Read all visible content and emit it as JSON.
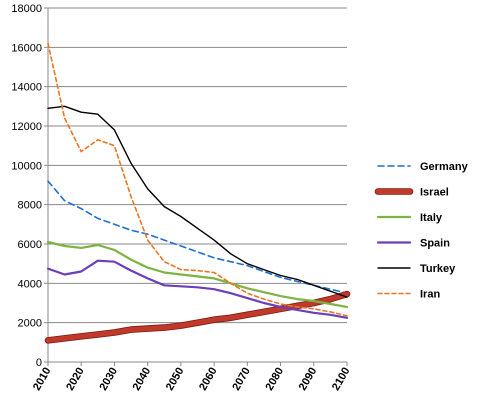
{
  "chart_data": {
    "type": "line",
    "title": "",
    "xlabel": "",
    "ylabel": "",
    "x": [
      2010,
      2015,
      2020,
      2025,
      2030,
      2035,
      2040,
      2045,
      2050,
      2055,
      2060,
      2065,
      2070,
      2075,
      2080,
      2085,
      2090,
      2095,
      2100
    ],
    "x_ticks": [
      "2010",
      "2020",
      "2030",
      "2040",
      "2050",
      "2060",
      "2070",
      "2080",
      "2090",
      "2100"
    ],
    "y_ticks": [
      "0",
      "2000",
      "4000",
      "6000",
      "8000",
      "10000",
      "12000",
      "14000",
      "16000",
      "18000"
    ],
    "xlim": [
      2010,
      2100
    ],
    "ylim": [
      0,
      18000
    ],
    "grid": "horizontal",
    "legend_position": "right",
    "series": [
      {
        "name": "Germany",
        "color": "#1f6fd1",
        "style": "dashed",
        "values": [
          9200,
          8200,
          7800,
          7300,
          7000,
          6700,
          6500,
          6200,
          5900,
          5600,
          5300,
          5100,
          4900,
          4600,
          4300,
          4100,
          3900,
          3700,
          3500
        ]
      },
      {
        "name": "Israel",
        "color": "#c0392b",
        "style": "thick",
        "values": [
          1100,
          1200,
          1300,
          1400,
          1500,
          1650,
          1700,
          1750,
          1850,
          2000,
          2150,
          2250,
          2400,
          2550,
          2700,
          2850,
          3000,
          3200,
          3450
        ]
      },
      {
        "name": "Italy",
        "color": "#7cb342",
        "style": "solid",
        "values": [
          6100,
          5900,
          5800,
          5950,
          5700,
          5200,
          4800,
          4550,
          4450,
          4350,
          4250,
          4000,
          3750,
          3550,
          3350,
          3200,
          3100,
          2950,
          2800
        ]
      },
      {
        "name": "Spain",
        "color": "#6a3fb8",
        "style": "solid",
        "values": [
          4750,
          4450,
          4600,
          5150,
          5100,
          4650,
          4250,
          3900,
          3850,
          3800,
          3700,
          3500,
          3250,
          3000,
          2800,
          2650,
          2500,
          2400,
          2250
        ]
      },
      {
        "name": "Turkey",
        "color": "#000000",
        "style": "solid",
        "values": [
          12900,
          13000,
          12700,
          12600,
          11800,
          10100,
          8800,
          7900,
          7400,
          6800,
          6200,
          5500,
          5000,
          4700,
          4400,
          4200,
          3900,
          3600,
          3300
        ]
      },
      {
        "name": "Iran",
        "color": "#e87722",
        "style": "dashed",
        "values": [
          16200,
          12400,
          10700,
          11300,
          11000,
          8400,
          6200,
          5100,
          4700,
          4650,
          4550,
          4000,
          3500,
          3200,
          2950,
          2800,
          2700,
          2550,
          2350
        ]
      }
    ]
  }
}
